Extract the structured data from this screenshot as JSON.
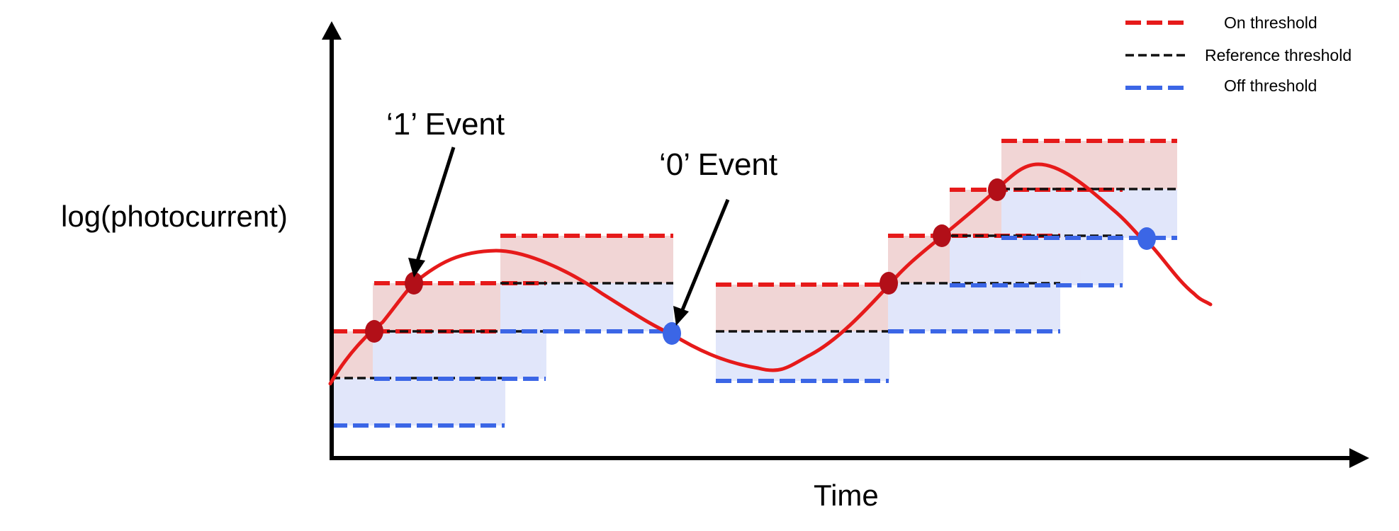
{
  "axes": {
    "y_label": "log(photocurrent)",
    "x_label": "Time"
  },
  "legend": {
    "items": [
      {
        "label": "On threshold",
        "color": "#e61a1a"
      },
      {
        "label": "Reference threshold",
        "color": "#111111"
      },
      {
        "label": "Off threshold",
        "color": "#3b66e6"
      }
    ]
  },
  "annotations": {
    "on_event": "‘1’ Event",
    "off_event": "‘0’ Event"
  },
  "colors": {
    "signal": "#e61a1a",
    "on_event_dot": "#b20f18",
    "off_event_dot": "#3b66e6",
    "on_band_fill": "#e8bcbc",
    "off_band_fill": "#cfd8f8",
    "axis": "#000000"
  }
}
